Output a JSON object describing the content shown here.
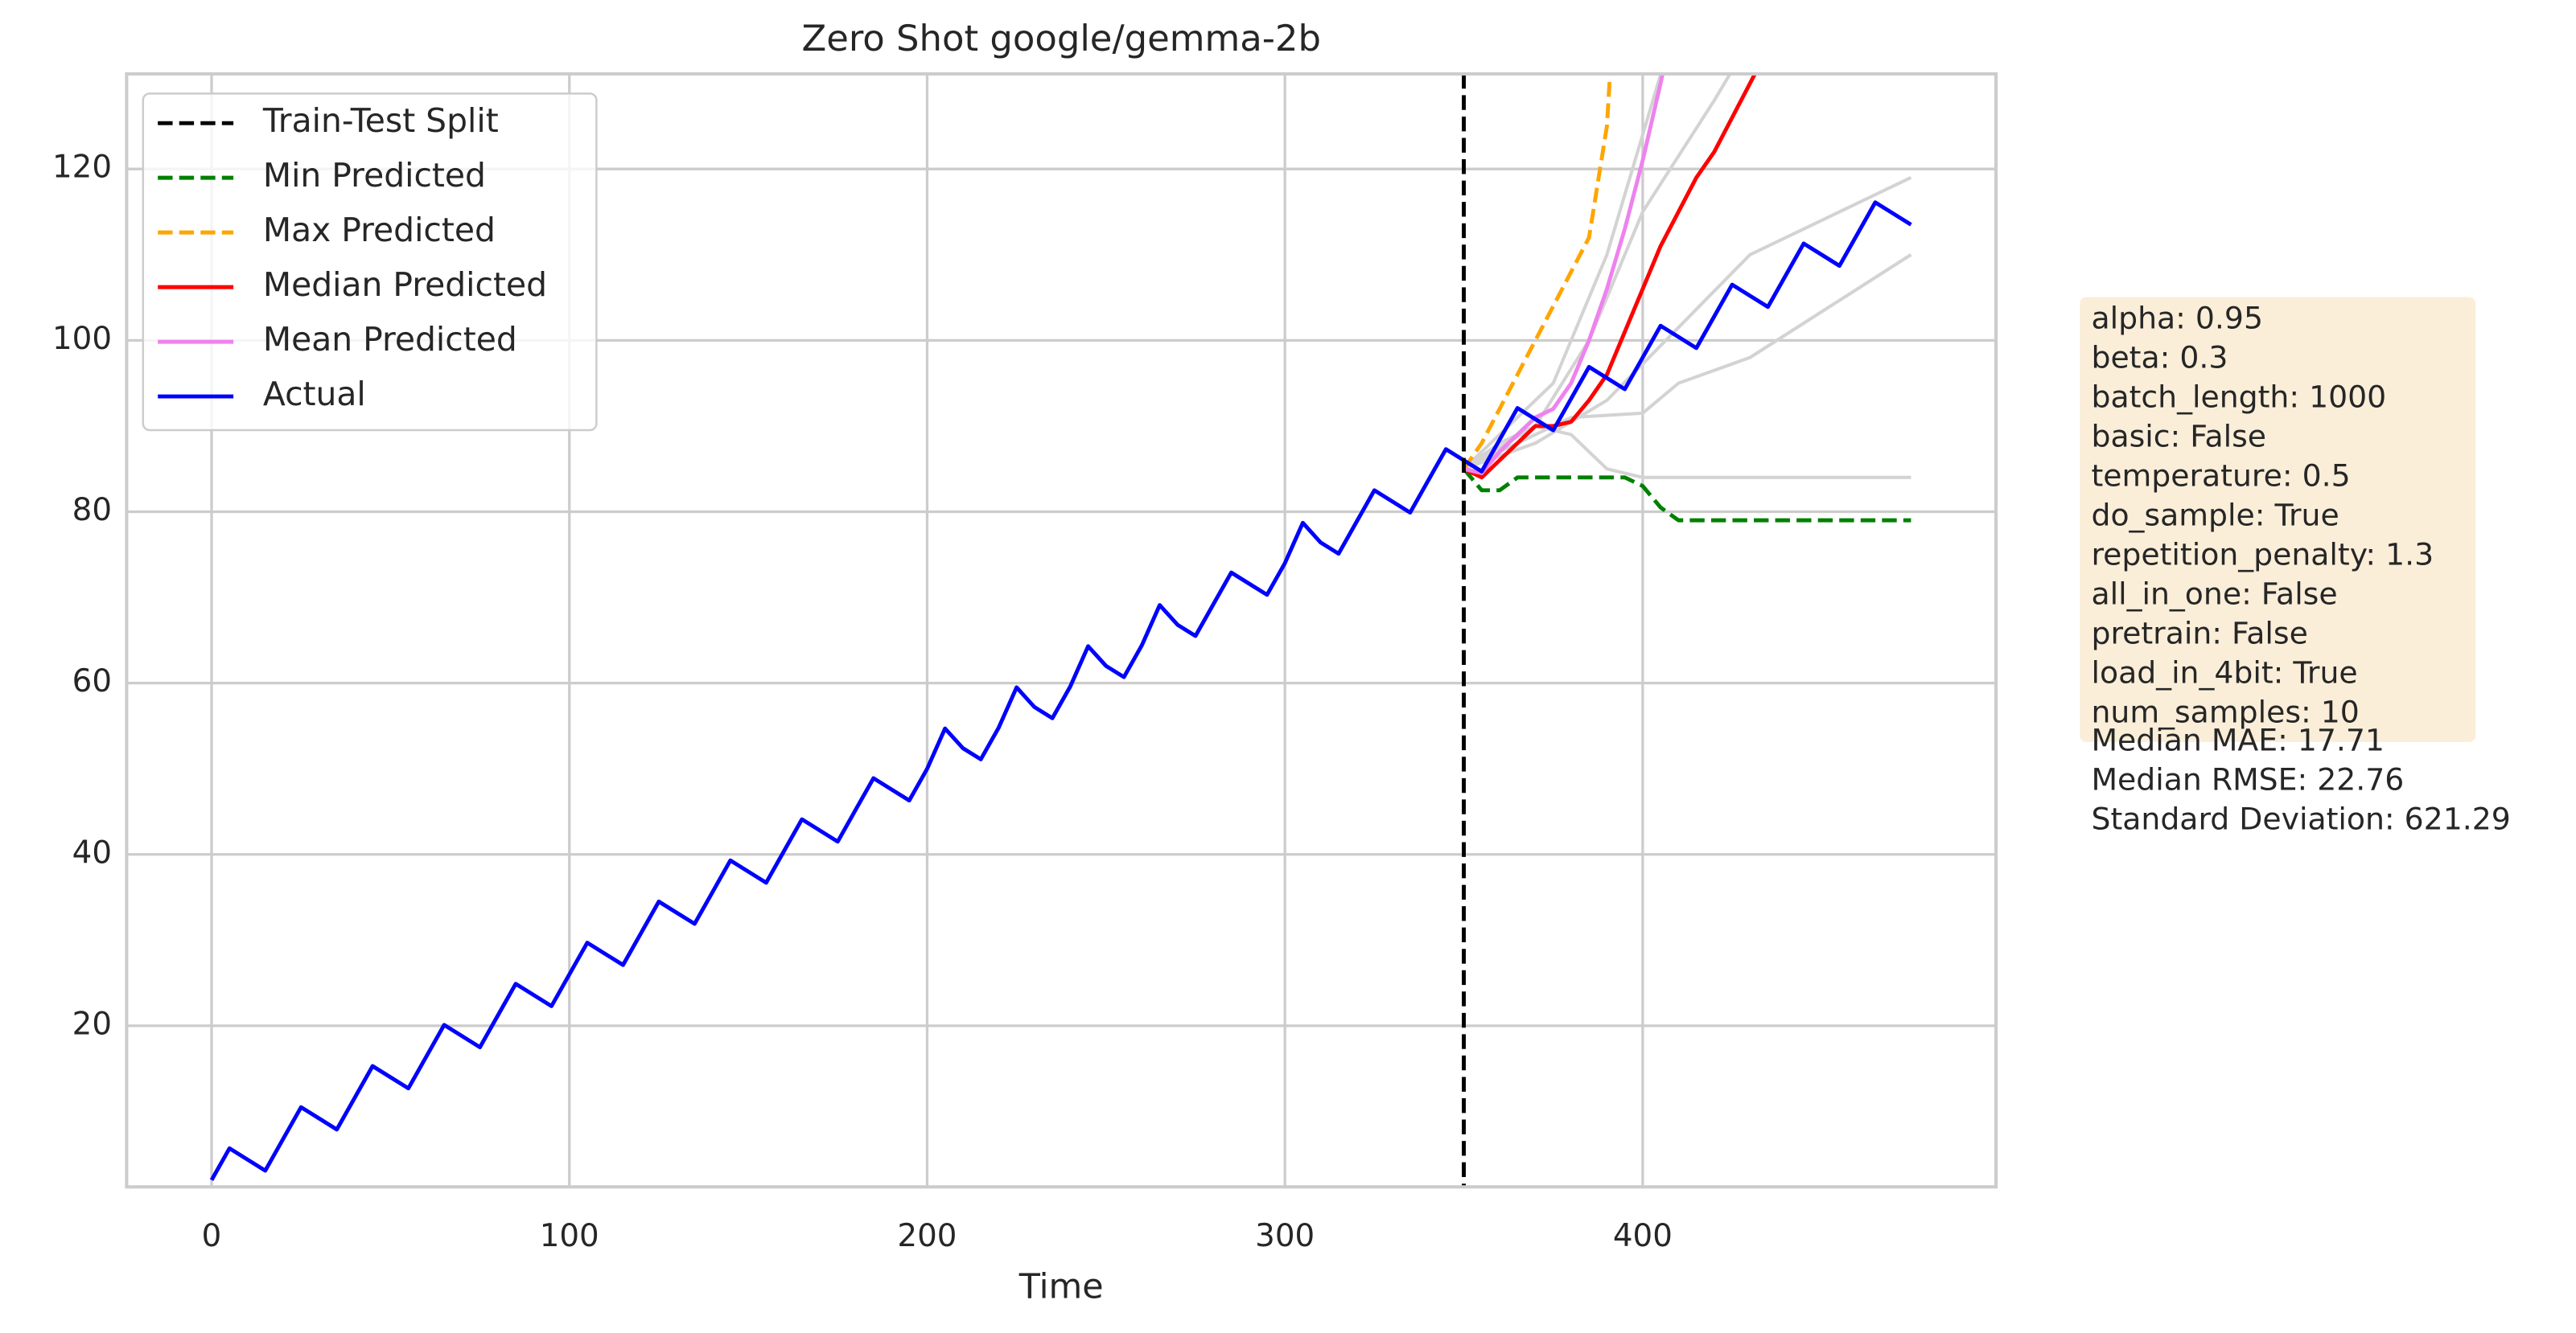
{
  "chart_data": {
    "type": "line",
    "title": "Zero Shot google/gemma-2b",
    "xlabel": "Time",
    "xlim": [
      -23.75,
      498.75
    ],
    "ylim": [
      1.2,
      131.1
    ],
    "xticks": [
      0,
      100,
      200,
      300,
      400
    ],
    "yticks": [
      20,
      40,
      60,
      80,
      100,
      120
    ],
    "grid": true,
    "legend": "upper left",
    "split": {
      "name": "Train-Test Split",
      "x": 350,
      "color": "#000000"
    },
    "series": [
      {
        "name": "Min Predicted",
        "color": "#008000",
        "dashed": true,
        "x": [
          350,
          355,
          360,
          365,
          370,
          375,
          380,
          385,
          390,
          395,
          400,
          405,
          410,
          415,
          420,
          425,
          430,
          435,
          440,
          445,
          450,
          455,
          460,
          465,
          470,
          475
        ],
        "values": [
          85,
          82.5,
          82.5,
          84,
          84,
          84,
          84,
          84,
          84,
          84,
          83,
          80.5,
          79,
          79,
          79,
          79,
          79,
          79,
          79,
          79,
          79,
          79,
          79,
          79,
          79,
          79
        ]
      },
      {
        "name": "Max Predicted",
        "color": "#ffa500",
        "dashed": true,
        "x": [
          350,
          355,
          360,
          365,
          370,
          375,
          380,
          385,
          390,
          395
        ],
        "values": [
          85,
          88,
          92,
          96,
          100,
          104,
          108,
          112,
          125,
          160
        ]
      },
      {
        "name": "Median Predicted",
        "color": "#ff0000",
        "dashed": false,
        "x": [
          350,
          355,
          360,
          365,
          370,
          375,
          380,
          385,
          390,
          395,
          400,
          405,
          410,
          415,
          420,
          425,
          430,
          435,
          440
        ],
        "values": [
          85,
          84,
          86,
          88,
          90,
          90,
          90.5,
          93,
          96,
          101,
          106,
          111,
          115,
          119,
          122,
          126,
          130,
          134,
          138
        ]
      },
      {
        "name": "Mean Predicted",
        "color": "#ee82ee",
        "dashed": false,
        "x": [
          350,
          355,
          360,
          365,
          370,
          375,
          380,
          385,
          390,
          395,
          400,
          405,
          410
        ],
        "values": [
          85,
          84.5,
          87,
          89,
          91,
          92,
          95,
          100,
          106,
          113,
          121,
          130,
          140
        ]
      },
      {
        "name": "Actual",
        "color": "#0000ff",
        "dashed": false,
        "x": [
          0,
          5,
          10,
          15,
          20,
          25,
          30,
          35,
          40,
          45,
          50,
          55,
          60,
          65,
          70,
          75,
          80,
          85,
          90,
          95,
          100,
          105,
          110,
          115,
          120,
          125,
          130,
          135,
          140,
          145,
          150,
          155,
          160,
          165,
          170,
          175,
          180,
          185,
          190,
          195,
          200,
          205,
          210,
          215,
          220,
          225,
          230,
          235,
          240,
          245,
          250,
          255,
          260,
          265,
          270,
          275,
          280,
          285,
          290,
          295,
          300,
          305,
          310,
          315,
          320,
          325,
          330,
          335,
          340,
          345,
          350,
          355,
          360,
          365,
          370,
          375,
          380,
          385,
          390,
          395,
          400,
          405,
          410,
          415,
          420,
          425,
          430,
          435,
          440,
          445,
          450,
          455,
          460,
          465,
          470,
          475
        ],
        "values": [
          2,
          5.7,
          4.4,
          3.1,
          6.8,
          10.5,
          9.2,
          7.9,
          11.6,
          15.3,
          14,
          12.7,
          16.4,
          20.1,
          18.8,
          17.5,
          21.2,
          24.9,
          23.6,
          22.3,
          26,
          29.7,
          28.4,
          27.1,
          30.8,
          34.5,
          33.2,
          31.9,
          35.6,
          39.3,
          38,
          36.7,
          40.4,
          44.1,
          42.8,
          41.5,
          45.2,
          48.9,
          47.6,
          46.3,
          50,
          54.7,
          52.4,
          51.1,
          54.8,
          59.5,
          57.2,
          55.9,
          59.6,
          64.3,
          62,
          60.7,
          64.4,
          69.1,
          66.8,
          65.5,
          69.2,
          72.9,
          71.6,
          70.3,
          74,
          78.7,
          76.4,
          75.1,
          78.8,
          82.5,
          81.2,
          79.9,
          83.6,
          87.3,
          86,
          84.7,
          88.4,
          92.1,
          90.8,
          89.5,
          93.2,
          96.9,
          95.6,
          94.3,
          98,
          101.7,
          100.4,
          99.1,
          102.8,
          106.5,
          105.2,
          103.9,
          107.6,
          111.3,
          110,
          108.7,
          112.4,
          116.1,
          114.8,
          113.5
        ]
      }
    ],
    "samples_color": "#d3d3d3",
    "samples": [
      {
        "x": [
          350,
          360,
          370,
          380,
          390,
          400,
          475
        ],
        "values": [
          85,
          88,
          90,
          89,
          85,
          84,
          84
        ]
      },
      {
        "x": [
          350,
          380,
          400,
          410,
          430,
          475
        ],
        "values": [
          85,
          91,
          91.5,
          95,
          98,
          110
        ]
      },
      {
        "x": [
          350,
          370,
          390,
          430,
          475
        ],
        "values": [
          85,
          88,
          93,
          110,
          119
        ]
      },
      {
        "x": [
          350,
          370,
          385,
          400,
          420,
          430
        ],
        "values": [
          85,
          90,
          100,
          115,
          128,
          135
        ]
      },
      {
        "x": [
          350,
          375,
          390,
          405,
          410
        ],
        "values": [
          85,
          95,
          110,
          131,
          138
        ]
      }
    ],
    "params": [
      "alpha: 0.95",
      "beta: 0.3",
      "batch_length: 1000",
      "basic: False",
      "temperature: 0.5",
      "do_sample: True",
      "repetition_penalty: 1.3",
      "all_in_one: False",
      "pretrain: False",
      "load_in_4bit: True",
      "num_samples: 10"
    ],
    "metrics": [
      "Median MAE: 17.71",
      "Median RMSE: 22.76",
      "Standard Deviation: 621.29"
    ]
  }
}
